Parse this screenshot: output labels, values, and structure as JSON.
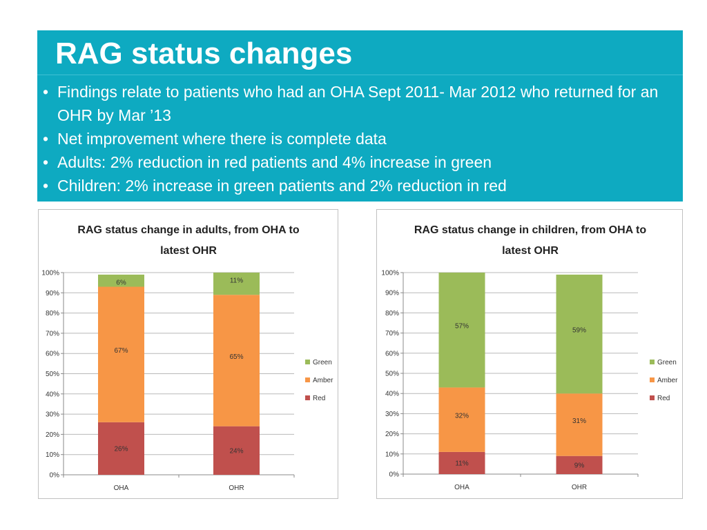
{
  "slide": {
    "title": "RAG status changes",
    "bullets": [
      "Findings relate to patients who had an OHA Sept 2011- Mar 2012 who returned for an OHR by Mar ’13",
      "Net improvement where there is  complete data",
      "Adults: 2% reduction in red patients and  4% increase in green",
      "Children: 2% increase in green patients and 2% reduction in red"
    ],
    "bullet_glyph": "•"
  },
  "colors": {
    "banner": "#0eaac1",
    "red": "#c0504d",
    "amber": "#f79646",
    "green": "#9bbb59"
  },
  "chart_data": [
    {
      "type": "bar",
      "stacked": true,
      "title": "RAG status change in adults, from OHA to latest OHR",
      "title_lines": [
        "RAG status change in adults, from OHA to",
        "latest OHR"
      ],
      "categories": [
        "OHA",
        "OHR"
      ],
      "series": [
        {
          "name": "Red",
          "values": [
            26,
            24
          ],
          "labels": [
            "26%",
            "24%"
          ],
          "color": "#c0504d"
        },
        {
          "name": "Amber",
          "values": [
            67,
            65
          ],
          "labels": [
            "67%",
            "65%"
          ],
          "color": "#f79646"
        },
        {
          "name": "Green",
          "values": [
            6,
            11
          ],
          "labels": [
            "6%",
            "11%"
          ],
          "color": "#9bbb59"
        }
      ],
      "legend_order": [
        "Green",
        "Amber",
        "Red"
      ],
      "y_ticks": [
        "0%",
        "10%",
        "20%",
        "30%",
        "40%",
        "50%",
        "60%",
        "70%",
        "80%",
        "90%",
        "100%"
      ],
      "ylim": [
        0,
        100
      ],
      "grid": true,
      "legend": "right"
    },
    {
      "type": "bar",
      "stacked": true,
      "title": "RAG status change in children, from OHA to latest OHR",
      "title_lines": [
        "RAG status change in children, from OHA to",
        "latest OHR"
      ],
      "categories": [
        "OHA",
        "OHR"
      ],
      "series": [
        {
          "name": "Red",
          "values": [
            11,
            9
          ],
          "labels": [
            "11%",
            "9%"
          ],
          "color": "#c0504d"
        },
        {
          "name": "Amber",
          "values": [
            32,
            31
          ],
          "labels": [
            "32%",
            "31%"
          ],
          "color": "#f79646"
        },
        {
          "name": "Green",
          "values": [
            57,
            59
          ],
          "labels": [
            "57%",
            "59%"
          ],
          "color": "#9bbb59"
        }
      ],
      "legend_order": [
        "Green",
        "Amber",
        "Red"
      ],
      "y_ticks": [
        "0%",
        "10%",
        "20%",
        "30%",
        "40%",
        "50%",
        "60%",
        "70%",
        "80%",
        "90%",
        "100%"
      ],
      "ylim": [
        0,
        100
      ],
      "grid": true,
      "legend": "right"
    }
  ]
}
